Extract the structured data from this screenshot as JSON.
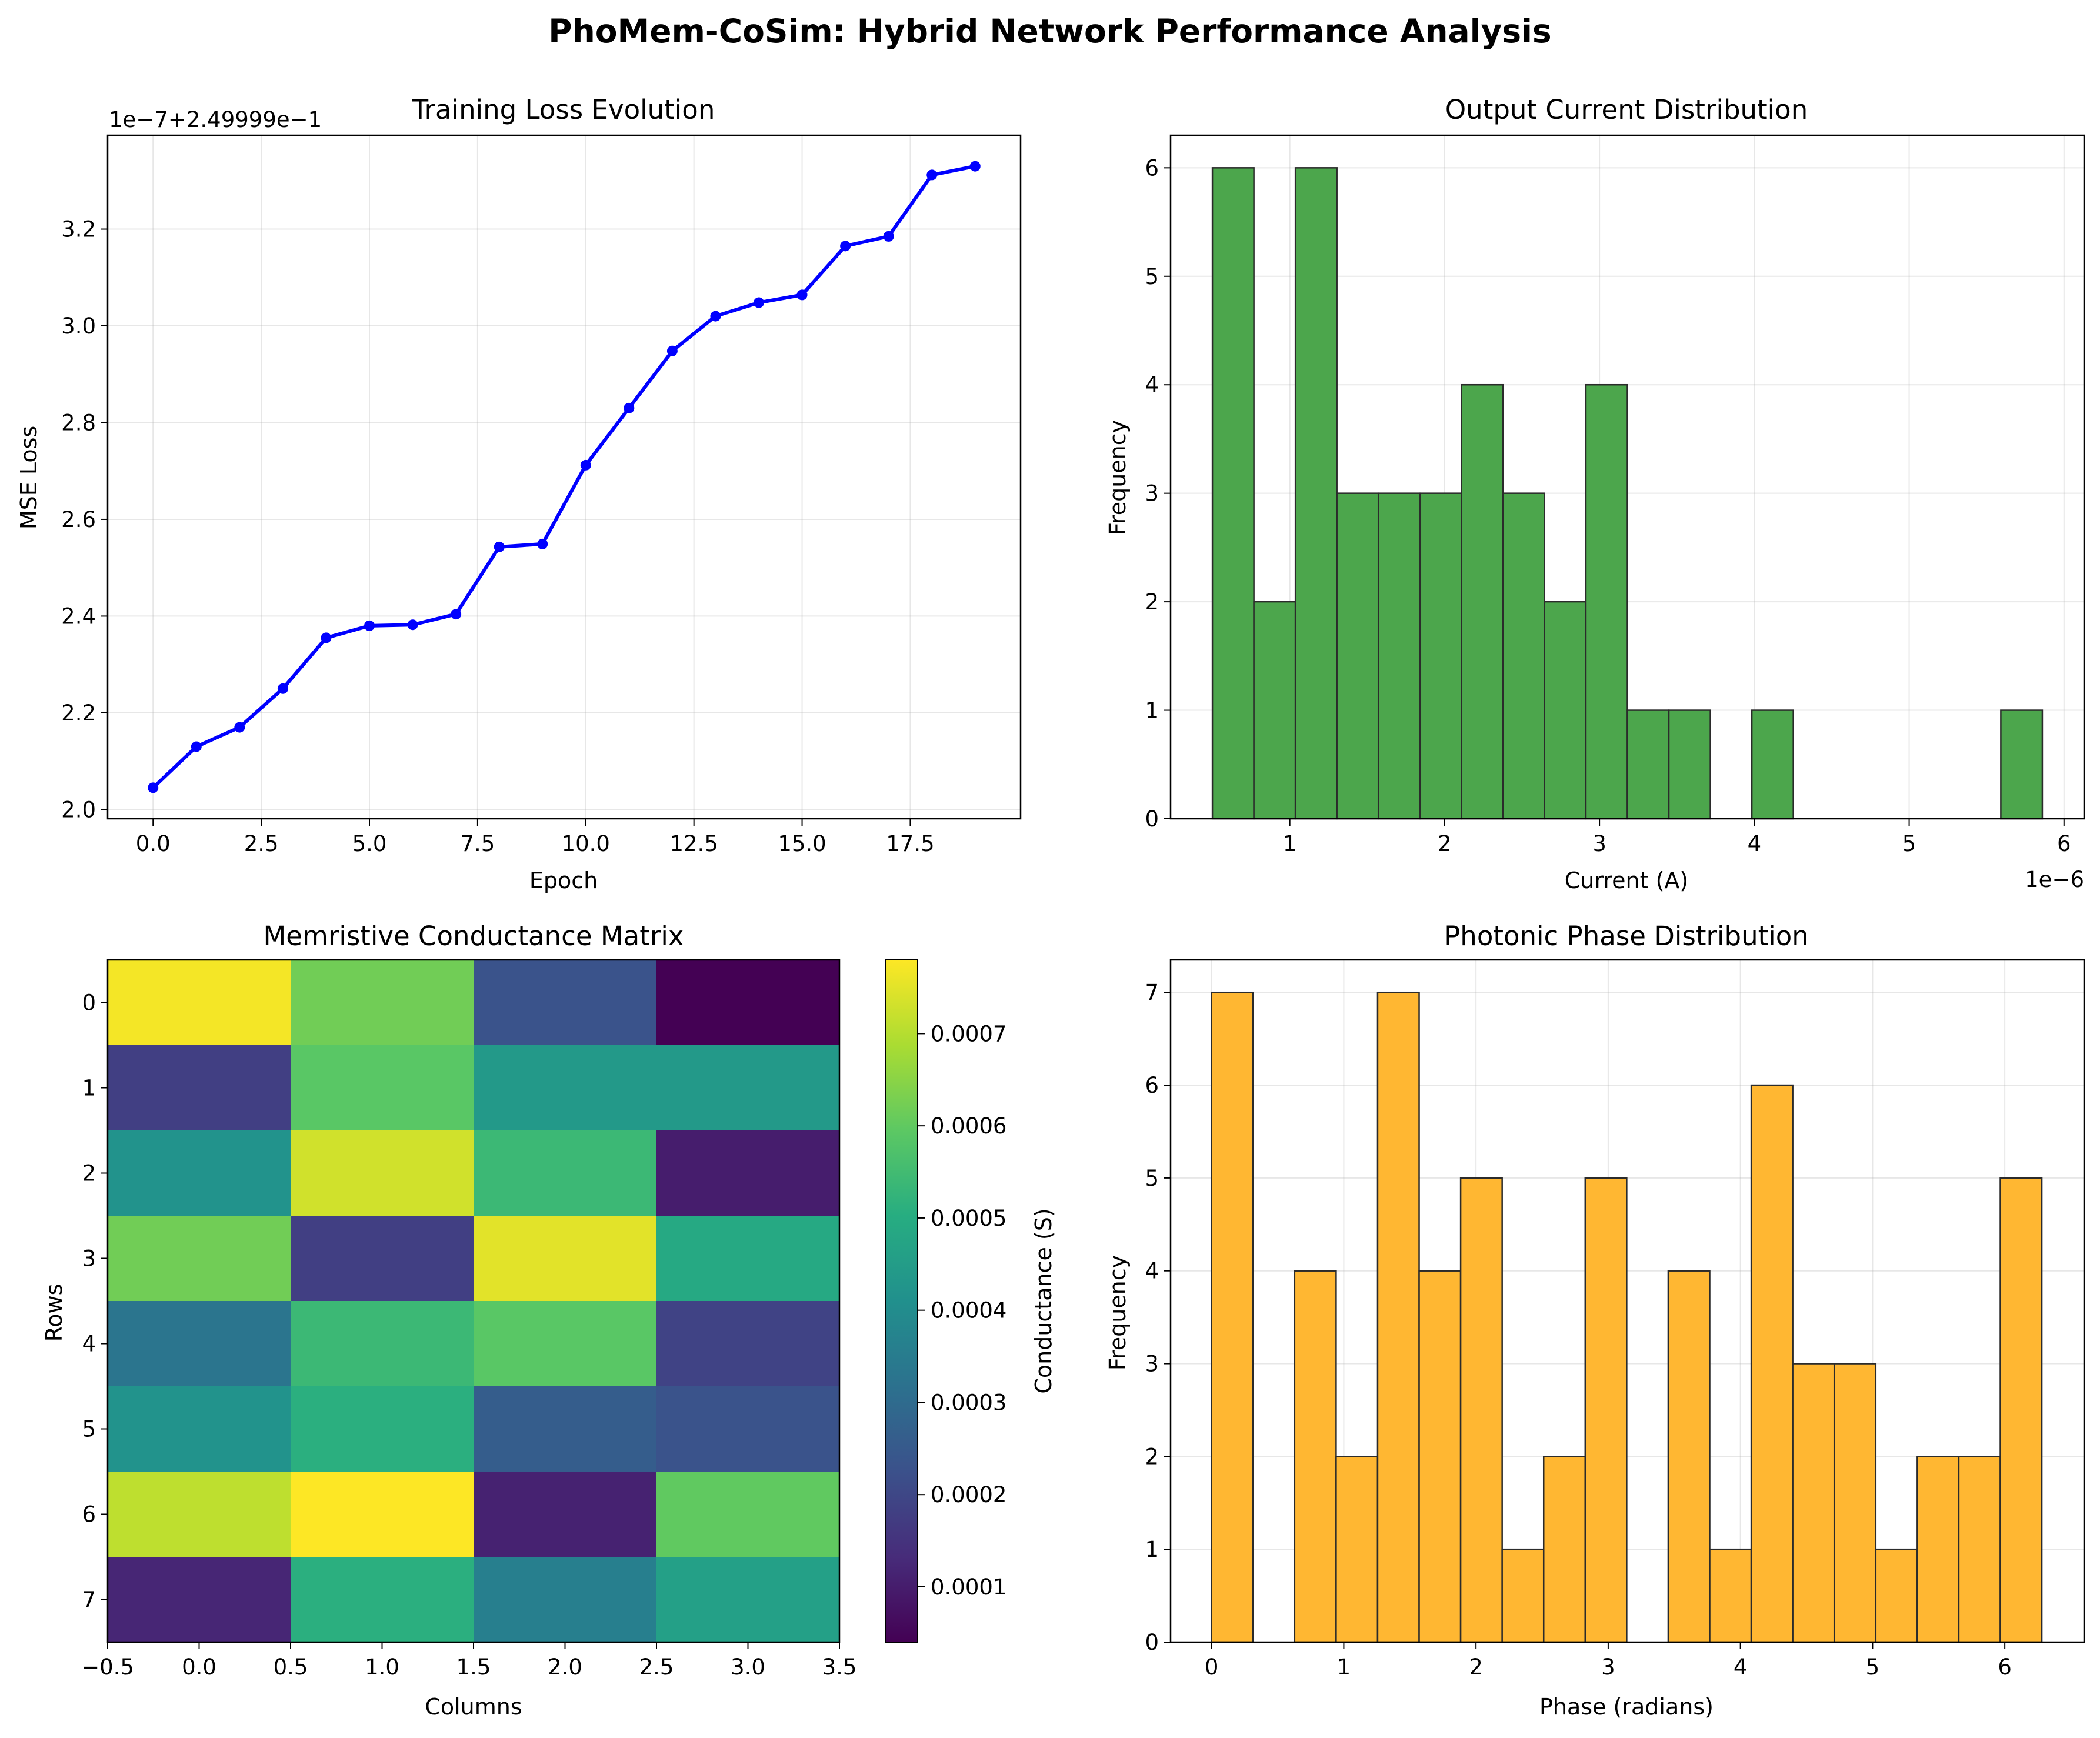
{
  "suptitle": "PhoMem-CoSim: Hybrid Network Performance Analysis",
  "chart_data": [
    {
      "type": "line",
      "title": "Training Loss Evolution",
      "xlabel": "Epoch",
      "ylabel": "MSE Loss",
      "offset_text": "1e−7+2.49999e−1",
      "x": [
        0,
        1,
        2,
        3,
        4,
        5,
        6,
        7,
        8,
        9,
        10,
        11,
        12,
        13,
        14,
        15,
        16,
        17,
        18,
        19
      ],
      "y": [
        2.045,
        2.13,
        2.17,
        2.25,
        2.355,
        2.38,
        2.382,
        2.404,
        2.543,
        2.549,
        2.712,
        2.83,
        2.948,
        3.02,
        3.048,
        3.064,
        3.165,
        3.185,
        3.312,
        3.33
      ],
      "xlim": [
        -1.05,
        20.05
      ],
      "ylim": [
        1.981,
        3.394
      ],
      "xticks": [
        0,
        2.5,
        5,
        7.5,
        10,
        12.5,
        15,
        17.5
      ],
      "xtick_labels": [
        "0.0",
        "2.5",
        "5.0",
        "7.5",
        "10.0",
        "12.5",
        "15.0",
        "17.5"
      ],
      "yticks": [
        2.0,
        2.2,
        2.4,
        2.6,
        2.8,
        3.0,
        3.2
      ],
      "ytick_labels": [
        "2.0",
        "2.2",
        "2.4",
        "2.6",
        "2.8",
        "3.0",
        "3.2"
      ],
      "color": "#0000ff",
      "grid": true
    },
    {
      "type": "bar",
      "subtype": "histogram",
      "title": "Output Current Distribution",
      "xlabel": "Current (A)",
      "ylabel": "Frequency",
      "offset_text": "1e−6",
      "bin_start": 0.5,
      "bin_width": 0.268,
      "counts": [
        6,
        2,
        6,
        3,
        3,
        3,
        4,
        3,
        2,
        4,
        1,
        1,
        0,
        1,
        0,
        0,
        0,
        0,
        0,
        1
      ],
      "xlim": [
        0.23,
        6.13
      ],
      "ylim": [
        0,
        6.3
      ],
      "xticks": [
        1,
        2,
        3,
        4,
        5,
        6
      ],
      "xtick_labels": [
        "1",
        "2",
        "3",
        "4",
        "5",
        "6"
      ],
      "yticks": [
        0,
        1,
        2,
        3,
        4,
        5,
        6
      ],
      "ytick_labels": [
        "0",
        "1",
        "2",
        "3",
        "4",
        "5",
        "6"
      ],
      "color": "#4ca64c",
      "grid": true
    },
    {
      "type": "heatmap",
      "title": "Memristive Conductance Matrix",
      "xlabel": "Columns",
      "ylabel": "Rows",
      "colorbar_label": "Conductance (S)",
      "values": [
        [
          0.00077,
          0.00062,
          0.00023,
          4e-05
        ],
        [
          0.00018,
          0.00059,
          0.00044,
          0.00044
        ],
        [
          0.00042,
          0.00073,
          0.00054,
          0.0001
        ],
        [
          0.00062,
          0.00018,
          0.00075,
          0.00049
        ],
        [
          0.00033,
          0.00054,
          0.00059,
          0.00019
        ],
        [
          0.00042,
          0.00051,
          0.00026,
          0.00023
        ],
        [
          0.00071,
          0.00078,
          0.00011,
          0.0006
        ],
        [
          0.00012,
          0.00051,
          0.00036,
          0.00046
        ]
      ],
      "vmin": 4e-05,
      "vmax": 0.00078,
      "colormap": "viridis",
      "xlim": [
        -0.5,
        3.5
      ],
      "xticks": [
        -0.5,
        0,
        0.5,
        1,
        1.5,
        2,
        2.5,
        3,
        3.5
      ],
      "xtick_labels": [
        "−0.5",
        "0.0",
        "0.5",
        "1.0",
        "1.5",
        "2.0",
        "2.5",
        "3.0",
        "3.5"
      ],
      "yticks": [
        0,
        1,
        2,
        3,
        4,
        5,
        6,
        7
      ],
      "ytick_labels": [
        "0",
        "1",
        "2",
        "3",
        "4",
        "5",
        "6",
        "7"
      ],
      "cbar_ticks": [
        0.0001,
        0.0002,
        0.0003,
        0.0004,
        0.0005,
        0.0006,
        0.0007
      ],
      "cbar_tick_labels": [
        "0.0001",
        "0.0002",
        "0.0003",
        "0.0004",
        "0.0005",
        "0.0006",
        "0.0007"
      ]
    },
    {
      "type": "bar",
      "subtype": "histogram",
      "title": "Photonic Phase Distribution",
      "xlabel": "Phase (radians)",
      "ylabel": "Frequency",
      "bin_start": 0.0,
      "bin_width": 0.314,
      "counts": [
        7,
        0,
        4,
        2,
        7,
        4,
        5,
        1,
        2,
        5,
        0,
        4,
        1,
        6,
        3,
        3,
        1,
        2,
        2,
        5
      ],
      "xlim": [
        -0.31,
        6.6
      ],
      "ylim": [
        0,
        7.35
      ],
      "xticks": [
        0,
        1,
        2,
        3,
        4,
        5,
        6
      ],
      "xtick_labels": [
        "0",
        "1",
        "2",
        "3",
        "4",
        "5",
        "6"
      ],
      "yticks": [
        0,
        1,
        2,
        3,
        4,
        5,
        6,
        7
      ],
      "ytick_labels": [
        "0",
        "1",
        "2",
        "3",
        "4",
        "5",
        "6",
        "7"
      ],
      "color": "#ffb732",
      "grid": true
    }
  ]
}
